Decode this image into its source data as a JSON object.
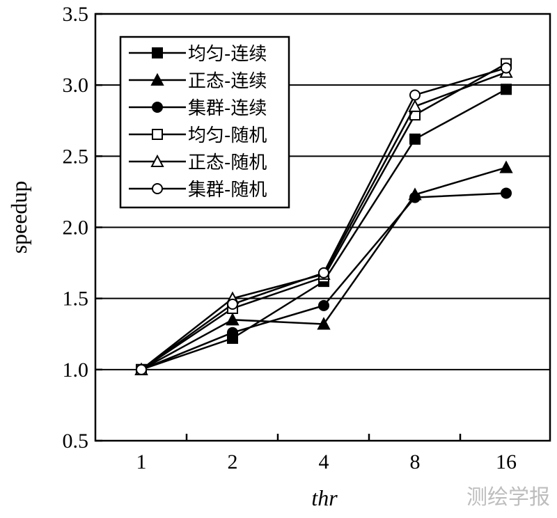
{
  "chart_data": {
    "type": "line",
    "categories": [
      "1",
      "2",
      "4",
      "8",
      "16"
    ],
    "xlabel": "thr",
    "ylabel": "speedup",
    "ylim": [
      0.5,
      3.5
    ],
    "yticks": [
      "0.5",
      "1.0",
      "1.5",
      "2.0",
      "2.5",
      "3.0",
      "3.5"
    ],
    "grid": "horizontal",
    "legend_position": "top-left",
    "series": [
      {
        "name": "均匀-连续",
        "marker": "square",
        "filled": true,
        "values": [
          1.0,
          1.22,
          1.62,
          2.62,
          2.97
        ]
      },
      {
        "name": "正态-连续",
        "marker": "triangle",
        "filled": true,
        "values": [
          1.0,
          1.35,
          1.32,
          2.23,
          2.42
        ]
      },
      {
        "name": "集群-连续",
        "marker": "circle",
        "filled": true,
        "values": [
          1.0,
          1.26,
          1.45,
          2.21,
          2.24
        ]
      },
      {
        "name": "均匀-随机",
        "marker": "square",
        "filled": false,
        "values": [
          1.0,
          1.43,
          1.65,
          2.79,
          3.15
        ]
      },
      {
        "name": "正态-随机",
        "marker": "triangle",
        "filled": false,
        "values": [
          1.0,
          1.5,
          1.67,
          2.85,
          3.09
        ]
      },
      {
        "name": "集群-随机",
        "marker": "circle",
        "filled": false,
        "values": [
          1.0,
          1.46,
          1.68,
          2.93,
          3.12
        ]
      }
    ]
  },
  "watermark": "测绘学报"
}
